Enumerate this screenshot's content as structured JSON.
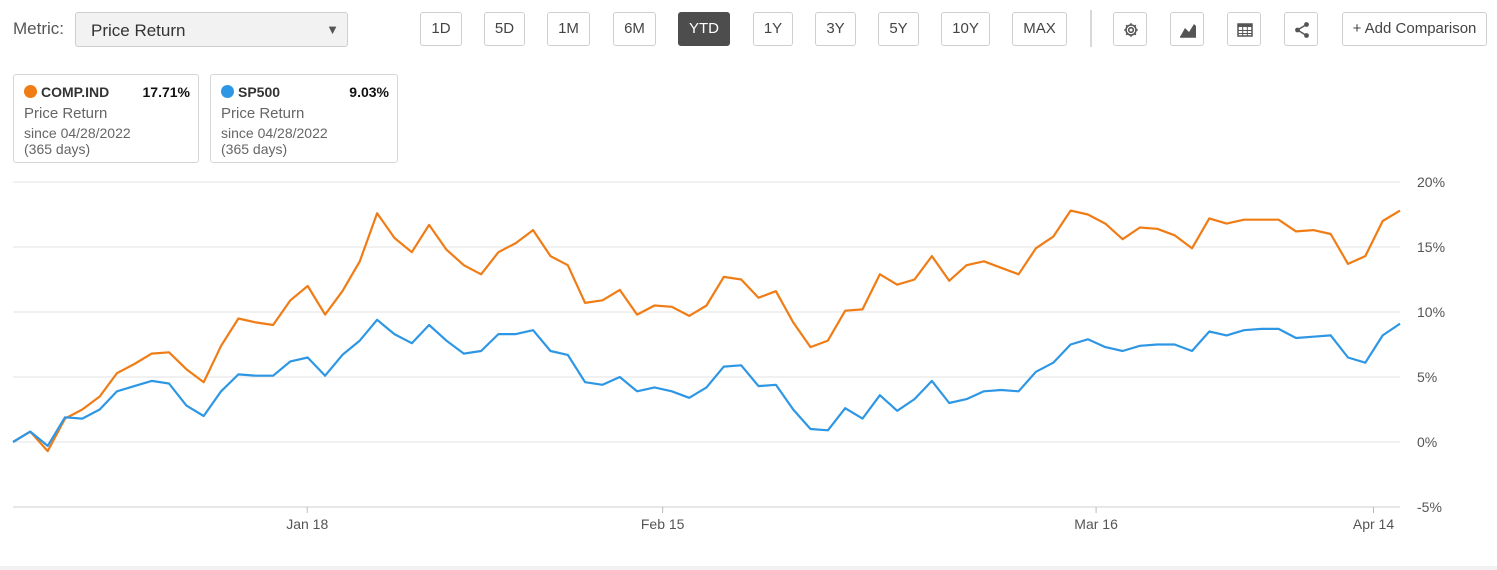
{
  "toolbar": {
    "metric_label": "Metric:",
    "metric_value": "Price Return",
    "ranges": [
      "1D",
      "5D",
      "1M",
      "6M",
      "YTD",
      "1Y",
      "3Y",
      "5Y",
      "10Y",
      "MAX"
    ],
    "active_range": "YTD",
    "icons": [
      "gear-icon",
      "chart-type-icon",
      "table-icon",
      "share-icon"
    ],
    "add_comparison": "+ Add Comparison"
  },
  "cards": [
    {
      "symbol": "COMP.IND",
      "change": "17.71%",
      "metric": "Price Return",
      "since": "since 04/28/2022",
      "days": "(365 days)",
      "color": "#f07c15"
    },
    {
      "symbol": "SP500",
      "change": "9.03%",
      "metric": "Price Return",
      "since": "since 04/28/2022",
      "days": "(365 days)",
      "color": "#2e97e5"
    }
  ],
  "chart_data": {
    "type": "line",
    "x_tick_labels": [
      "Jan 18",
      "Feb 15",
      "Mar 16",
      "Apr 14"
    ],
    "y_tick_labels": [
      "20%",
      "15%",
      "10%",
      "5%",
      "0%",
      "-5%"
    ],
    "ylim": [
      -5,
      20
    ],
    "grid": true,
    "series": [
      {
        "name": "COMP.IND",
        "color": "#f07c15",
        "values": [
          0,
          0.8,
          -0.7,
          1.8,
          2.5,
          3.5,
          5.3,
          6.0,
          6.8,
          6.9,
          5.6,
          4.6,
          7.4,
          9.5,
          9.2,
          9.0,
          10.9,
          12.0,
          9.8,
          11.6,
          13.9,
          17.6,
          15.7,
          14.6,
          16.7,
          14.8,
          13.6,
          12.9,
          14.6,
          15.3,
          16.3,
          14.3,
          13.6,
          10.7,
          10.9,
          11.7,
          9.8,
          10.5,
          10.4,
          9.7,
          10.5,
          12.7,
          12.5,
          11.1,
          11.6,
          9.2,
          7.3,
          7.8,
          10.1,
          10.2,
          12.9,
          12.1,
          12.5,
          14.3,
          12.4,
          13.6,
          13.9,
          13.4,
          12.9,
          14.9,
          15.8,
          17.8,
          17.5,
          16.8,
          15.6,
          16.5,
          16.4,
          15.9,
          14.9,
          17.2,
          16.8,
          17.1,
          17.1,
          17.1,
          16.2,
          16.3,
          16.0,
          13.7,
          14.3,
          17.0,
          17.8
        ]
      },
      {
        "name": "SP500",
        "color": "#2e97e5",
        "values": [
          0,
          0.8,
          -0.3,
          1.9,
          1.8,
          2.5,
          3.9,
          4.3,
          4.7,
          4.5,
          2.8,
          2.0,
          3.9,
          5.2,
          5.1,
          5.1,
          6.2,
          6.5,
          5.1,
          6.7,
          7.8,
          9.4,
          8.3,
          7.6,
          9.0,
          7.8,
          6.8,
          7.0,
          8.3,
          8.3,
          8.6,
          7.0,
          6.7,
          4.6,
          4.4,
          5.0,
          3.9,
          4.2,
          3.9,
          3.4,
          4.2,
          5.8,
          5.9,
          4.3,
          4.4,
          2.5,
          1.0,
          0.9,
          2.6,
          1.8,
          3.6,
          2.4,
          3.3,
          4.7,
          3.0,
          3.3,
          3.9,
          4.0,
          3.9,
          5.4,
          6.1,
          7.5,
          7.9,
          7.3,
          7.0,
          7.4,
          7.5,
          7.5,
          7.0,
          8.5,
          8.2,
          8.6,
          8.7,
          8.7,
          8.0,
          8.1,
          8.2,
          6.5,
          6.1,
          8.2,
          9.1
        ]
      }
    ]
  }
}
